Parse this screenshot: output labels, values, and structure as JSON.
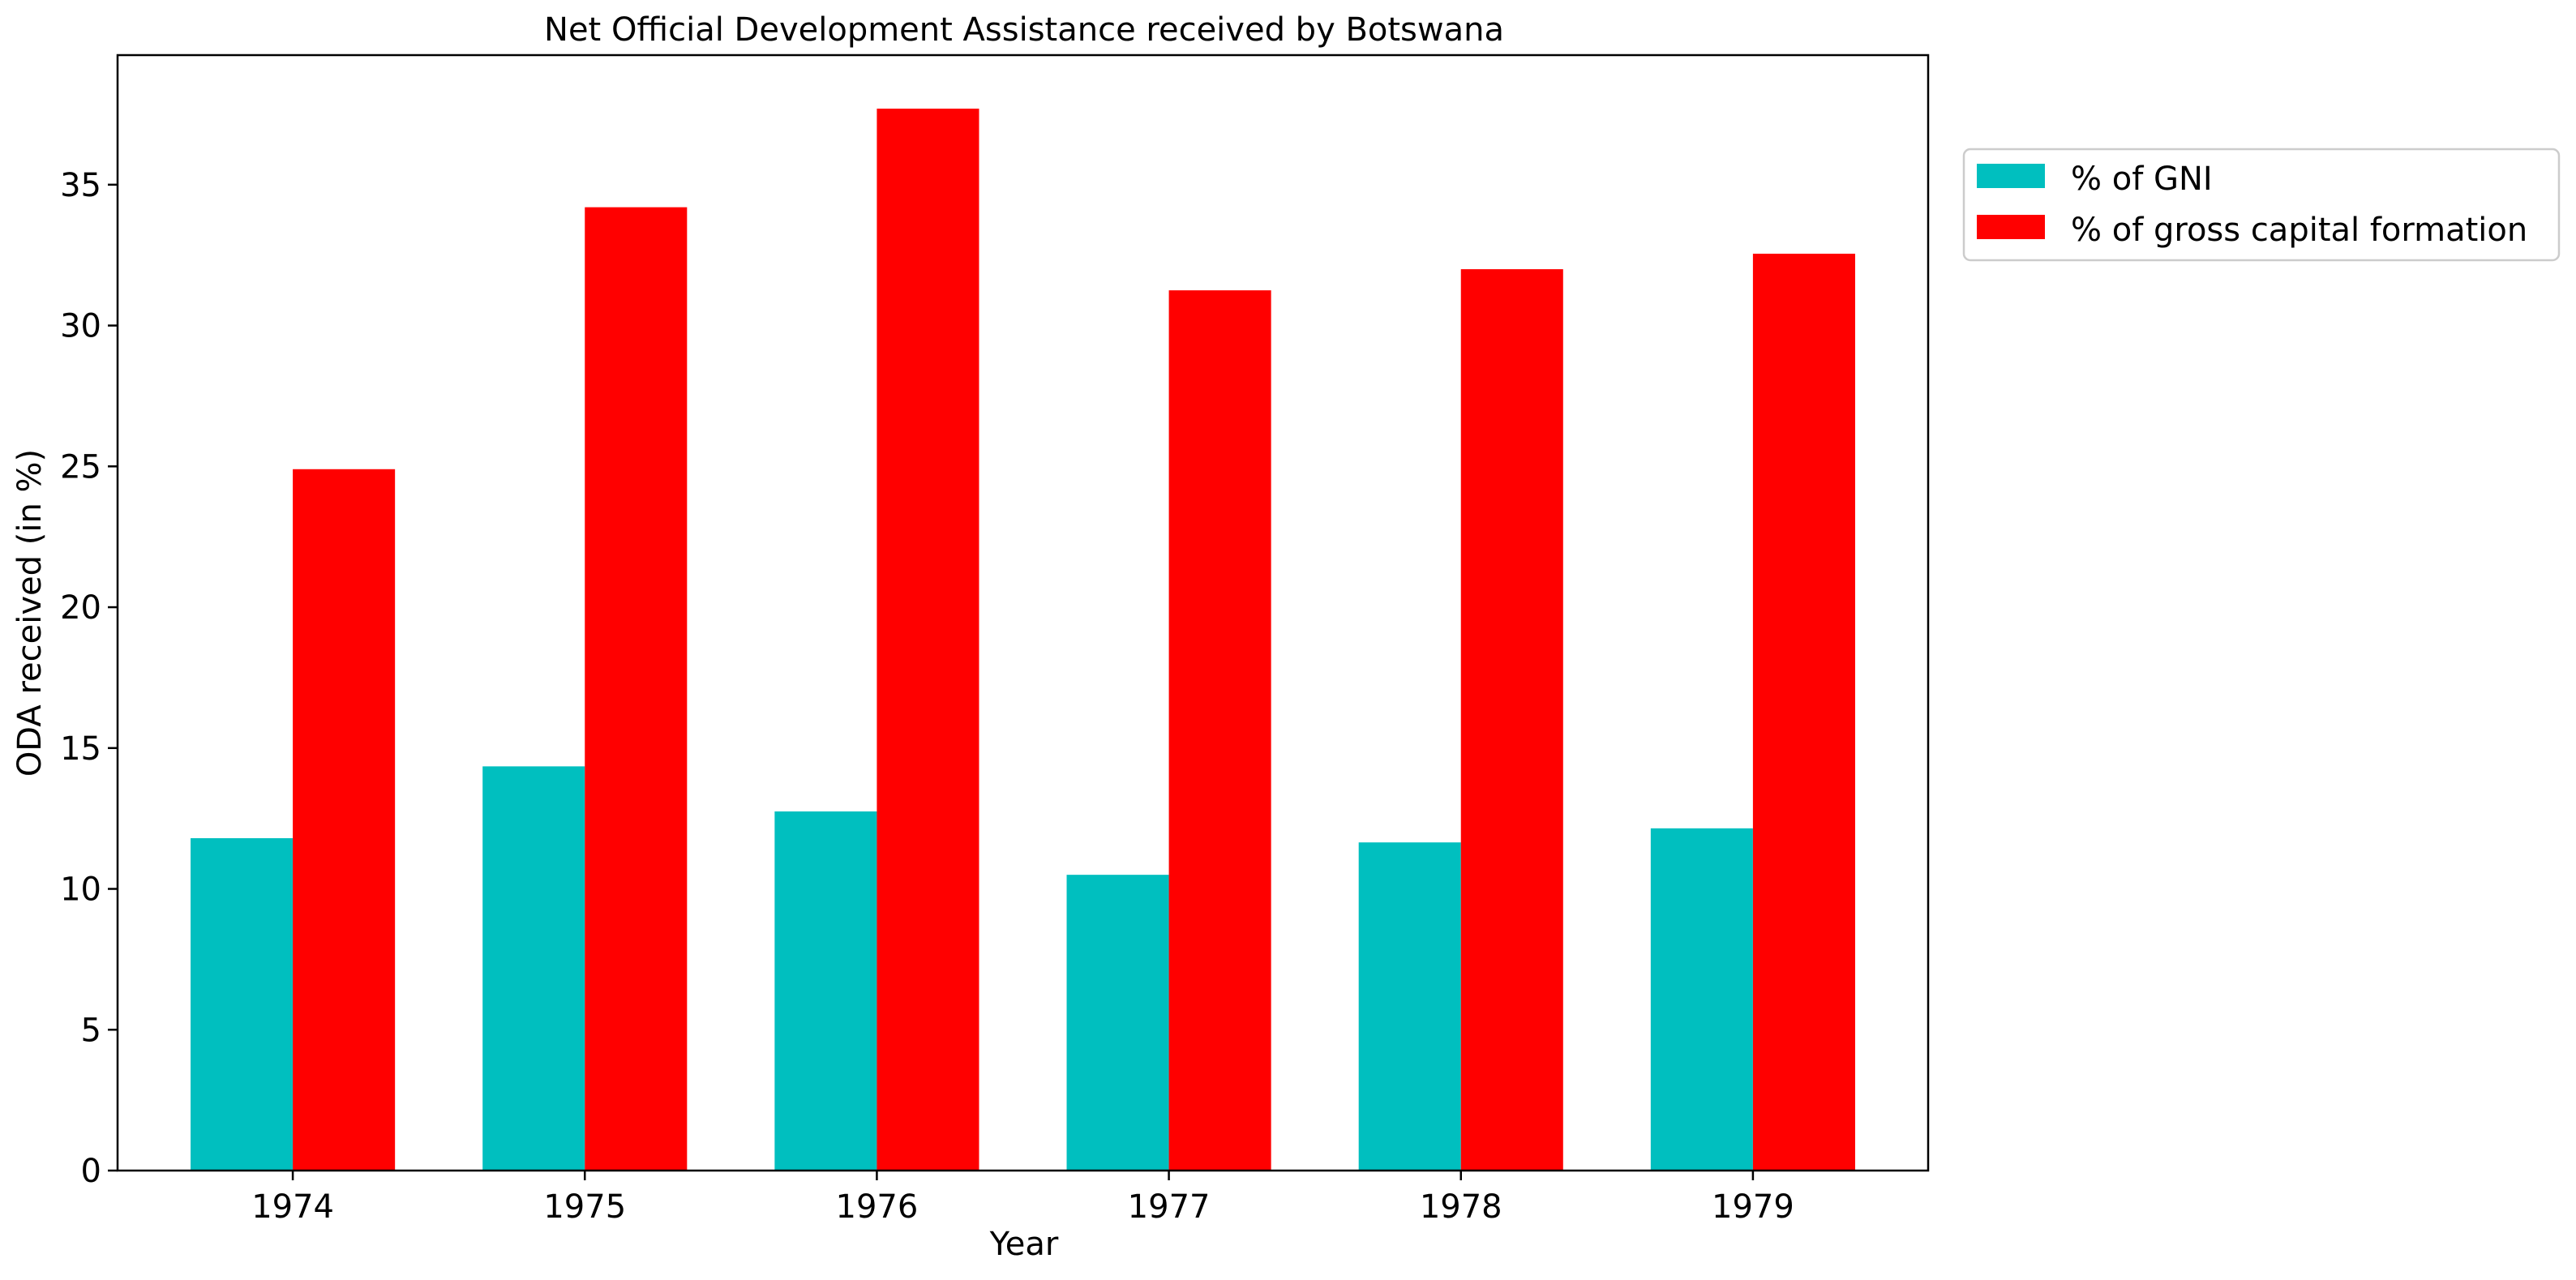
{
  "chart_data": {
    "type": "bar",
    "title": "Net Official Development Assistance received by Botswana",
    "xlabel": "Year",
    "ylabel": "ODA received (in %)",
    "categories": [
      "1974",
      "1975",
      "1976",
      "1977",
      "1978",
      "1979"
    ],
    "series": [
      {
        "name": "% of GNI",
        "color": "#00bfbf",
        "values": [
          11.8,
          14.35,
          12.75,
          10.5,
          11.65,
          12.15
        ]
      },
      {
        "name": "% of gross capital formation",
        "color": "#ff0000",
        "values": [
          24.9,
          34.2,
          37.7,
          31.25,
          32.0,
          32.55
        ]
      }
    ],
    "ylim": [
      0,
      39.6
    ],
    "yticks": [
      "0",
      "5",
      "10",
      "15",
      "20",
      "25",
      "30",
      "35"
    ],
    "grid": false,
    "legend_position": "outside-upper-right"
  }
}
